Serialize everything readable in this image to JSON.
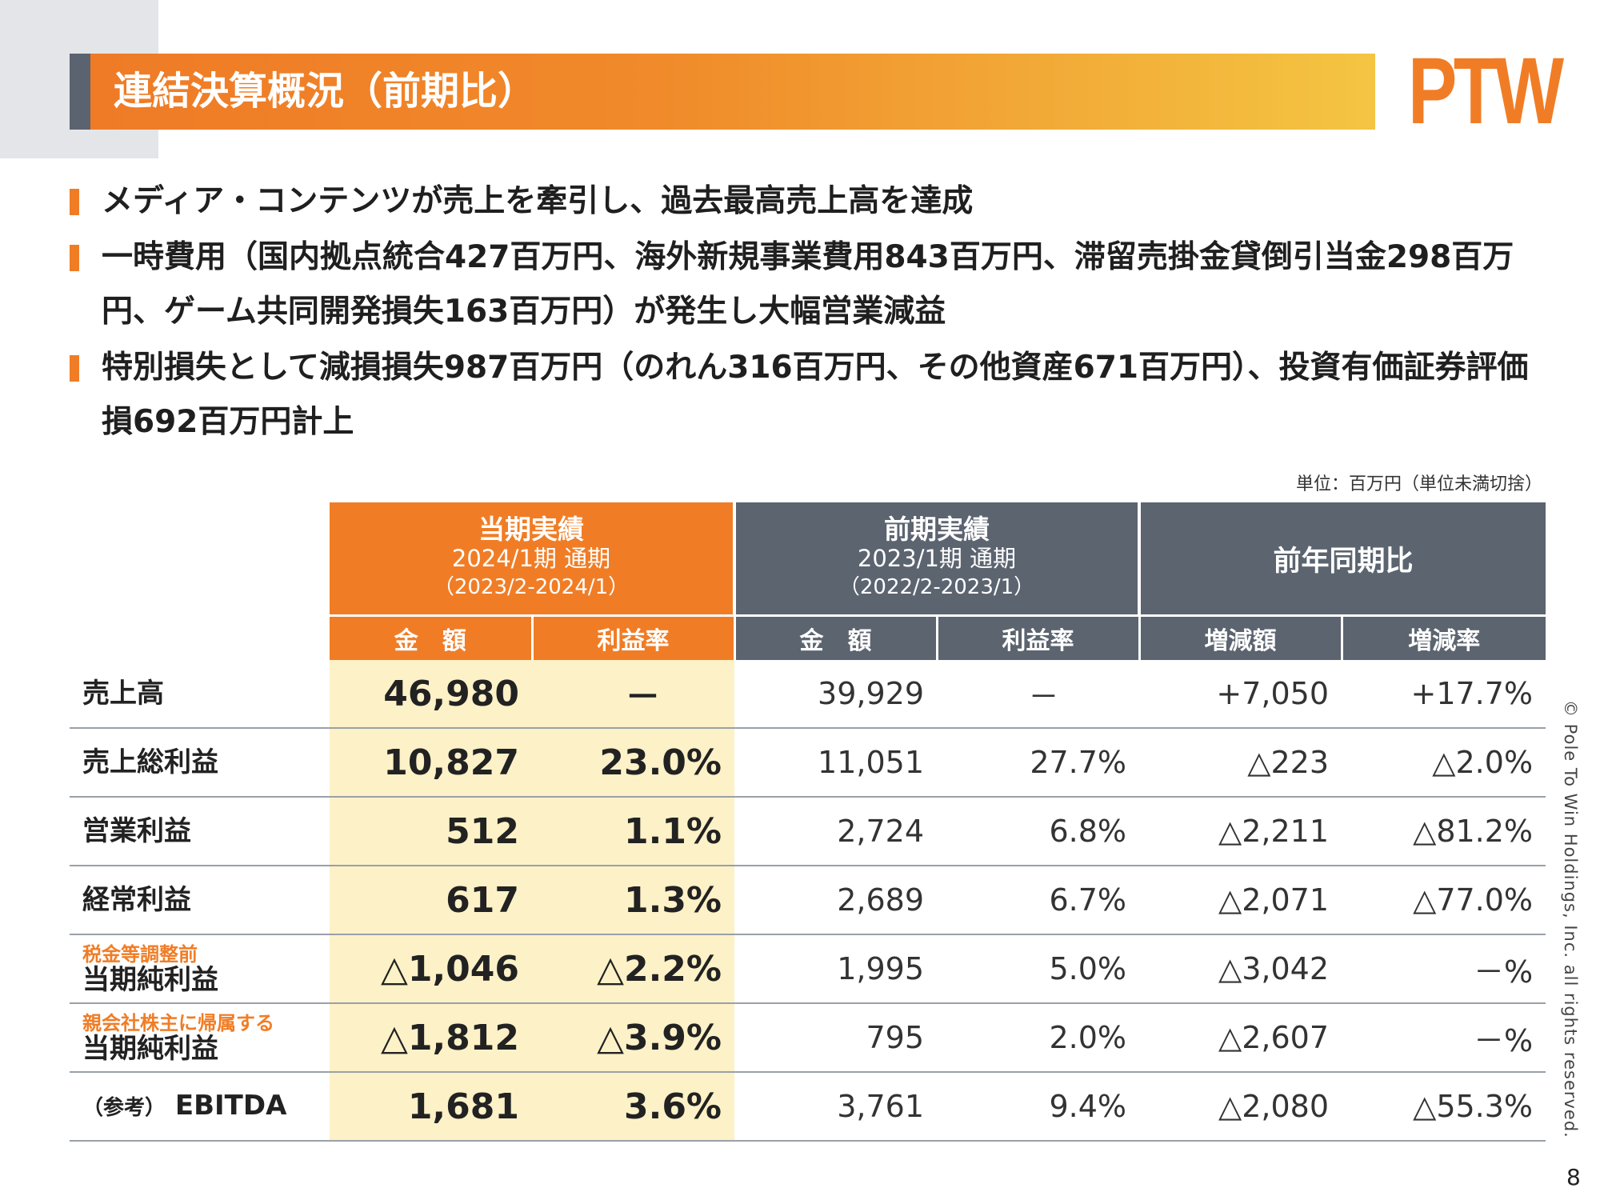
{
  "title": "連結決算概況（前期比）",
  "logo": "PTW",
  "bullets": [
    "メディア・コンテンツが売上を牽引し、過去最高売上高を達成",
    "一時費用（国内拠点統合427百万円、海外新規事業費用843百万円、滞留売掛金貸倒引当金298百万円、ゲーム共同開発損失163百万円）が発生し大幅営業減益",
    "特別損失として減損損失987百万円（のれん316百万円、その他資産671百万円）、投資有価証券評価損692百万円計上"
  ],
  "unit_note": "単位：百万円（単位未満切捨）",
  "headers": {
    "current": {
      "title": "当期実績",
      "period": "2024/1期 通期",
      "range": "（2023/2-2024/1）"
    },
    "previous": {
      "title": "前期実績",
      "period": "2023/1期 通期",
      "range": "（2022/2-2023/1）"
    },
    "comparison": "前年同期比",
    "amount": "金　額",
    "margin": "利益率",
    "change_amount": "増減額",
    "change_rate": "増減率"
  },
  "rows": [
    {
      "pre": "",
      "label": "売上高",
      "cur_amount": "46,980",
      "cur_margin": "－",
      "prev_amount": "39,929",
      "prev_margin": "－",
      "chg_amount": "+7,050",
      "chg_rate": "+17.7%"
    },
    {
      "pre": "",
      "label": "売上総利益",
      "cur_amount": "10,827",
      "cur_margin": "23.0%",
      "prev_amount": "11,051",
      "prev_margin": "27.7%",
      "chg_amount": "△223",
      "chg_rate": "△2.0%"
    },
    {
      "pre": "",
      "label": "営業利益",
      "cur_amount": "512",
      "cur_margin": "1.1%",
      "prev_amount": "2,724",
      "prev_margin": "6.8%",
      "chg_amount": "△2,211",
      "chg_rate": "△81.2%"
    },
    {
      "pre": "",
      "label": "経常利益",
      "cur_amount": "617",
      "cur_margin": "1.3%",
      "prev_amount": "2,689",
      "prev_margin": "6.7%",
      "chg_amount": "△2,071",
      "chg_rate": "△77.0%"
    },
    {
      "pre": "税金等調整前",
      "label": "当期純利益",
      "cur_amount": "△1,046",
      "cur_margin": "△2.2%",
      "prev_amount": "1,995",
      "prev_margin": "5.0%",
      "chg_amount": "△3,042",
      "chg_rate": "－%"
    },
    {
      "pre": "親会社株主に帰属する",
      "label": "当期純利益",
      "cur_amount": "△1,812",
      "cur_margin": "△3.9%",
      "prev_amount": "795",
      "prev_margin": "2.0%",
      "chg_amount": "△2,607",
      "chg_rate": "－%"
    },
    {
      "pre": "",
      "ref": "（参考）",
      "label": "EBITDA",
      "cur_amount": "1,681",
      "cur_margin": "3.6%",
      "prev_amount": "3,761",
      "prev_margin": "9.4%",
      "chg_amount": "△2,080",
      "chg_rate": "△55.3%"
    }
  ],
  "copyright": "© Pole To Win Holdings, Inc. all rights reserved.",
  "page_number": "8"
}
